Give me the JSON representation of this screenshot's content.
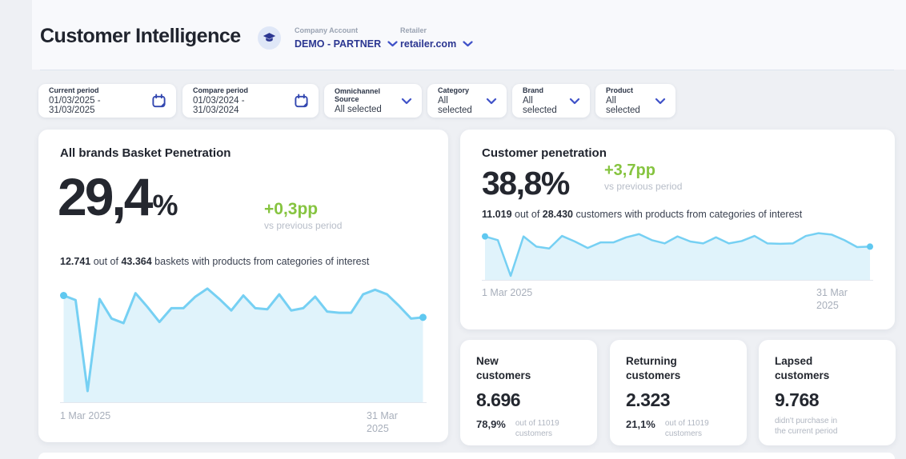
{
  "header": {
    "title": "Customer Intelligence",
    "company_account": {
      "label": "Company Account",
      "value": "DEMO - PARTNER"
    },
    "retailer": {
      "label": "Retailer",
      "value": "retailer.com"
    }
  },
  "filters": [
    {
      "label": "Current period",
      "value": "01/03/2025 - 31/03/2025",
      "icon": "calendar"
    },
    {
      "label": "Compare period",
      "value": "01/03/2024 - 31/03/2024",
      "icon": "calendar"
    },
    {
      "label": "Omnichannel Source",
      "value": "All selected",
      "icon": "chevron"
    },
    {
      "label": "Category",
      "value": "All selected",
      "icon": "chevron"
    },
    {
      "label": "Brand",
      "value": "All selected",
      "icon": "chevron"
    },
    {
      "label": "Product",
      "value": "All selected",
      "icon": "chevron"
    }
  ],
  "basket_card": {
    "title": "All brands Basket Penetration",
    "value": "29,4",
    "unit": "%",
    "delta": "+0,3pp",
    "delta_caption": "vs previous period",
    "stat_bold1": "12.741",
    "stat_text1": " out of ",
    "stat_bold2": "43.364",
    "stat_text2": " baskets with products from categories of interest"
  },
  "customer_card": {
    "title": "Customer penetration",
    "value": "38,8",
    "unit": "%",
    "delta": "+3,7pp",
    "delta_caption": "vs previous period",
    "stat_bold1": "11.019",
    "stat_text1": " out of ",
    "stat_bold2": "28.430",
    "stat_text2": " customers with products from categories of interest"
  },
  "kpi_cards": [
    {
      "title_line1": "New",
      "title_line2": "customers",
      "value": "8.696",
      "pct": "78,9%",
      "caption_line1": "out of 11019",
      "caption_line2": "customers"
    },
    {
      "title_line1": "Returning",
      "title_line2": "customers",
      "value": "2.323",
      "pct": "21,1%",
      "caption_line1": "out of 11019",
      "caption_line2": "customers"
    },
    {
      "title_line1": "Lapsed",
      "title_line2": "customers",
      "value": "9.768",
      "pct": "",
      "caption_line1": "didn't purchase in",
      "caption_line2": "the current period"
    }
  ],
  "chart_data": [
    {
      "type": "area",
      "title": "All brands Basket Penetration — daily trend (1–31 Mar 2025)",
      "x": [
        1,
        2,
        3,
        4,
        5,
        6,
        7,
        8,
        9,
        10,
        11,
        12,
        13,
        14,
        15,
        16,
        17,
        18,
        19,
        20,
        21,
        22,
        23,
        24,
        25,
        26,
        27,
        28,
        29,
        30,
        31
      ],
      "values_relative": [
        92,
        88,
        9,
        89,
        72,
        68,
        94,
        82,
        69,
        81,
        81,
        91,
        98,
        89,
        79,
        92,
        81,
        80,
        93,
        79,
        81,
        91,
        78,
        77,
        77,
        93,
        97,
        93,
        83,
        72,
        73
      ],
      "ylim": [
        0,
        100
      ],
      "x_start_label": "1 Mar 2025",
      "x_end_line1": "31 Mar",
      "x_end_line2": "2025",
      "line_color": "#76d0f3",
      "fill_color": "#e0f3fb",
      "dot_color": "#5fc8f0",
      "grid": "off",
      "legend": "none",
      "note": "y values estimated on a relative 0-100 scale; no numeric axis shown in source"
    },
    {
      "type": "area",
      "title": "Customer penetration — daily trend (1–31 Mar 2025)",
      "x": [
        1,
        2,
        3,
        4,
        5,
        6,
        7,
        8,
        9,
        10,
        11,
        12,
        13,
        14,
        15,
        16,
        17,
        18,
        19,
        20,
        21,
        22,
        23,
        24,
        25,
        26,
        27,
        28,
        29,
        30,
        31
      ],
      "values_relative": [
        92,
        84,
        7,
        92,
        70,
        66,
        93,
        81,
        67,
        79,
        79,
        90,
        97,
        84,
        77,
        92,
        81,
        77,
        90,
        77,
        82,
        93,
        77,
        76,
        77,
        93,
        99,
        96,
        84,
        69,
        70
      ],
      "ylim": [
        0,
        100
      ],
      "x_start_label": "1 Mar 2025",
      "x_end_line1": "31 Mar",
      "x_end_line2": "2025",
      "line_color": "#76d0f3",
      "fill_color": "#e0f3fb",
      "dot_color": "#5fc8f0",
      "grid": "off",
      "legend": "none",
      "note": "y values estimated on a relative 0-100 scale; no numeric axis shown in source"
    }
  ],
  "colors": {
    "accent_navy": "#2b3691",
    "chevron_blue": "#4052c8",
    "positive_green": "#86c440",
    "line_blue": "#76d0f3"
  }
}
